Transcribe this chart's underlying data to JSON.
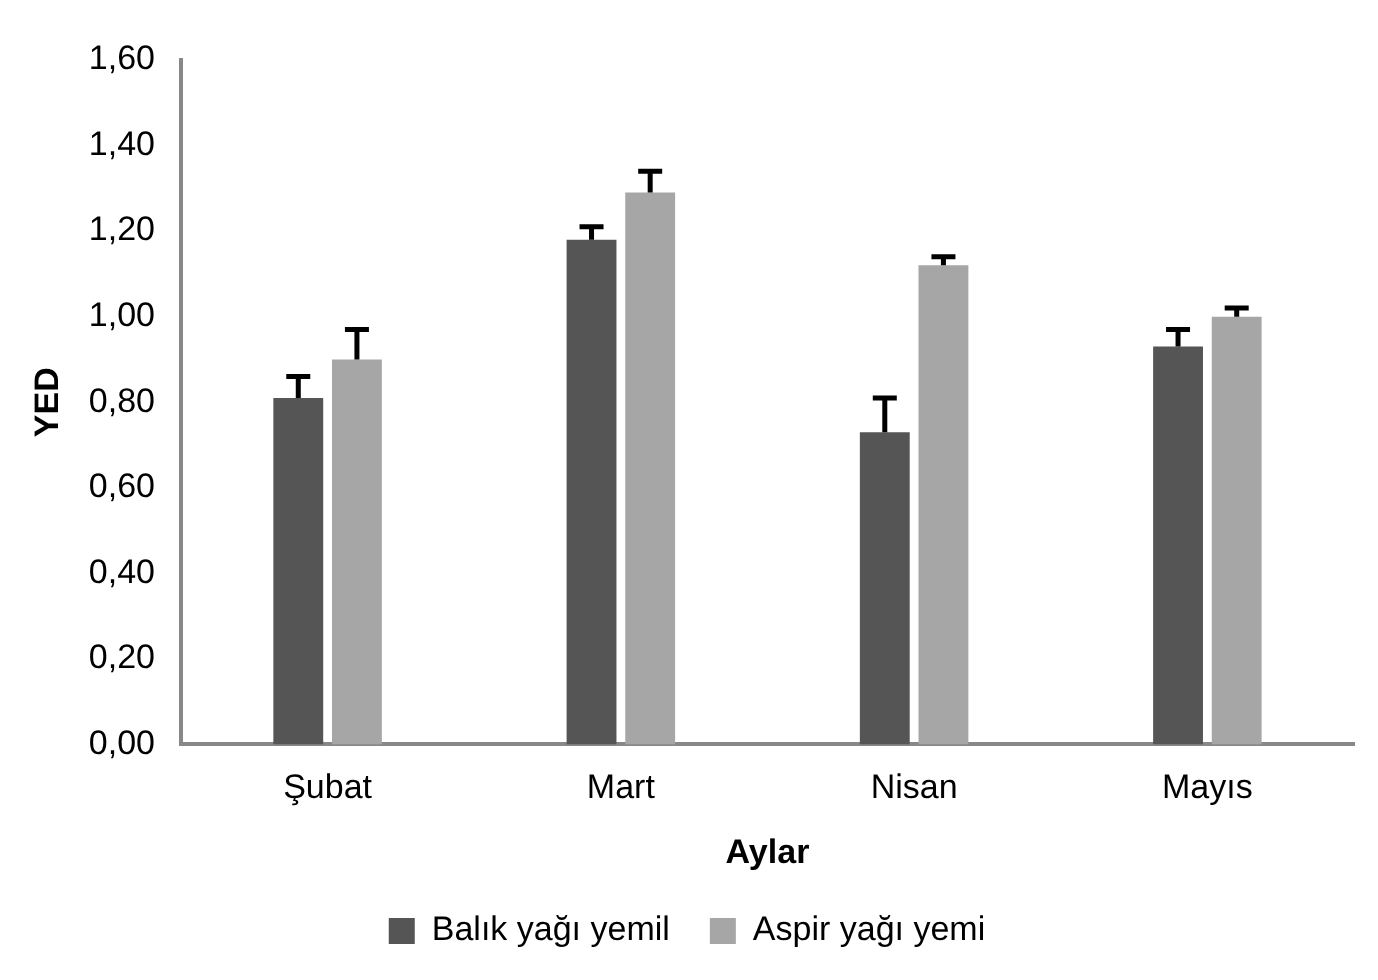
{
  "chart_data": {
    "type": "bar",
    "xlabel": "Aylar",
    "ylabel": "YED",
    "categories": [
      "Şubat",
      "Mart",
      "Nisan",
      "Mayıs"
    ],
    "series": [
      {
        "name": "Balık yağı yemil",
        "color": "#555555",
        "values": [
          0.81,
          1.18,
          0.73,
          0.93
        ],
        "errors": [
          [
            0.81,
            0.86
          ],
          [
            1.18,
            1.21
          ],
          [
            0.73,
            0.81
          ],
          [
            0.93,
            0.97
          ]
        ]
      },
      {
        "name": "Aspir yağı yemi",
        "color": "#a6a6a6",
        "values": [
          0.9,
          1.29,
          1.12,
          1.0
        ],
        "errors": [
          [
            0.9,
            0.97
          ],
          [
            1.29,
            1.34
          ],
          [
            1.12,
            1.14
          ],
          [
            1.0,
            1.02
          ]
        ]
      }
    ],
    "ylim": [
      0,
      1.6
    ],
    "yticks": [
      {
        "value": 0,
        "label": "0,00"
      },
      {
        "value": 0.2,
        "label": "0,20"
      },
      {
        "value": 0.4,
        "label": "0,40"
      },
      {
        "value": 0.6,
        "label": "0,60"
      },
      {
        "value": 0.8,
        "label": "0,80"
      },
      {
        "value": 1,
        "label": "1,00"
      },
      {
        "value": 1.2,
        "label": "1,20"
      },
      {
        "value": 1.4,
        "label": "1,40"
      },
      {
        "value": 1.6,
        "label": "1,60"
      }
    ],
    "grid": false,
    "legend": "bottom"
  }
}
